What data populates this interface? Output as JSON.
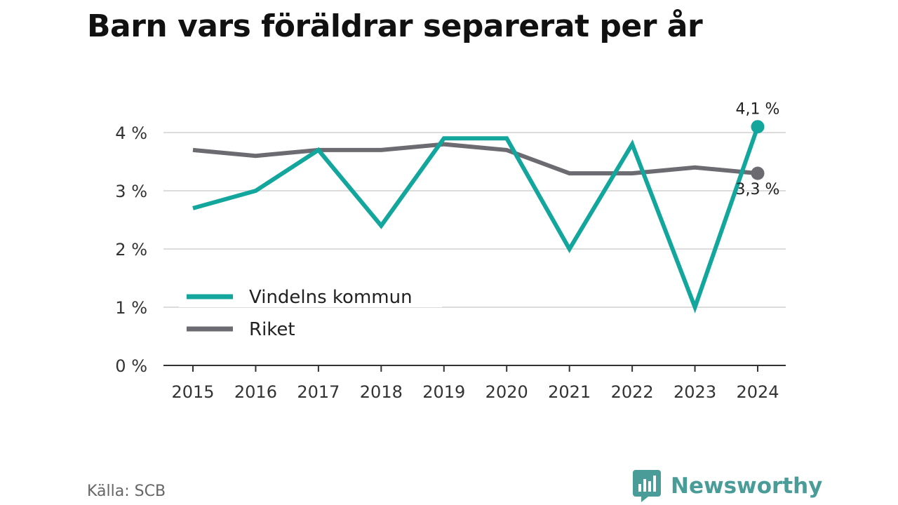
{
  "title": "Barn vars föräldrar separerat per år",
  "source": "Källa: SCB",
  "brand": {
    "name": "Newsworthy",
    "icon": "newsworthy-logo-icon",
    "color": "#4a9c98"
  },
  "chart_data": {
    "type": "line",
    "title": "Barn vars föräldrar separerat per år",
    "x": [
      "2015",
      "2016",
      "2017",
      "2018",
      "2019",
      "2020",
      "2021",
      "2022",
      "2023",
      "2024"
    ],
    "y_ticks": [
      0,
      1,
      2,
      3,
      4
    ],
    "y_tick_labels": [
      "0 %",
      "1 %",
      "2 %",
      "3 %",
      "4 %"
    ],
    "ylim": [
      0,
      4.1
    ],
    "grid": true,
    "legend_position": "bottom-left",
    "series": [
      {
        "name": "Vindelns kommun",
        "color": "#13a69c",
        "values": [
          2.7,
          3.0,
          3.7,
          2.4,
          3.9,
          3.9,
          2.0,
          3.8,
          1.0,
          4.1
        ],
        "end_label": "4,1 %"
      },
      {
        "name": "Riket",
        "color": "#6c6b71",
        "values": [
          3.7,
          3.6,
          3.7,
          3.7,
          3.8,
          3.7,
          3.3,
          3.3,
          3.4,
          3.3
        ],
        "end_label": "3,3 %"
      }
    ]
  }
}
